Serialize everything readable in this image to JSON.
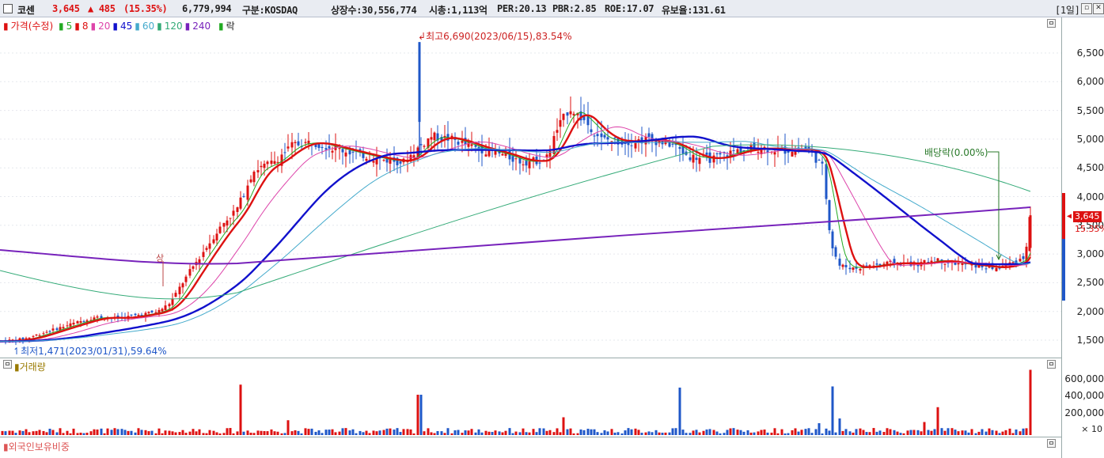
{
  "header": {
    "stock_name": "코센",
    "price": "3,645",
    "change": "▲ 485",
    "change_pct": "(15.35%)",
    "volume": "6,779,994",
    "market": "구분:KOSDAQ",
    "shares": "상장수:30,556,774",
    "mcap": "시총:1,113억",
    "per": "PER:20.13",
    "pbr": "PBR:2.85",
    "roe": "ROE:17.07",
    "float": "유보율:131.61",
    "period": "[1일]"
  },
  "legend": {
    "price_label": "가격(수정)",
    "ma": [
      {
        "label": "5",
        "color": "#22aa22"
      },
      {
        "label": "8",
        "color": "#dd1111"
      },
      {
        "label": "20",
        "color": "#dd44aa"
      },
      {
        "label": "45",
        "color": "#1111cc"
      },
      {
        "label": "60",
        "color": "#44aacc"
      },
      {
        "label": "120",
        "color": "#33aa77"
      },
      {
        "label": "240",
        "color": "#7722bb"
      }
    ],
    "drop_label": "락"
  },
  "annotations": {
    "high": "최고6,690(2023/06/15),83.54%",
    "low": "최저1,471(2023/01/31),59.64%",
    "dividend": "배당락(0.00%)",
    "rise_mark": "상"
  },
  "price_axis": {
    "ticks": [
      "6,500",
      "6,000",
      "5,500",
      "5,000",
      "4,500",
      "4,000",
      "3,500",
      "3,000",
      "2,500",
      "2,000",
      "1,500"
    ],
    "current_price": "3,645",
    "current_pct": "15.35%"
  },
  "volume_panel": {
    "title": "거래량",
    "ticks": [
      "600,000",
      "400,000",
      "200,000"
    ],
    "unit": "× 10"
  },
  "foreign_panel": {
    "title": "외국인보유비중"
  },
  "colors": {
    "up": "#dd1111",
    "down": "#1f57c8",
    "ma240": "#7722bb"
  }
}
